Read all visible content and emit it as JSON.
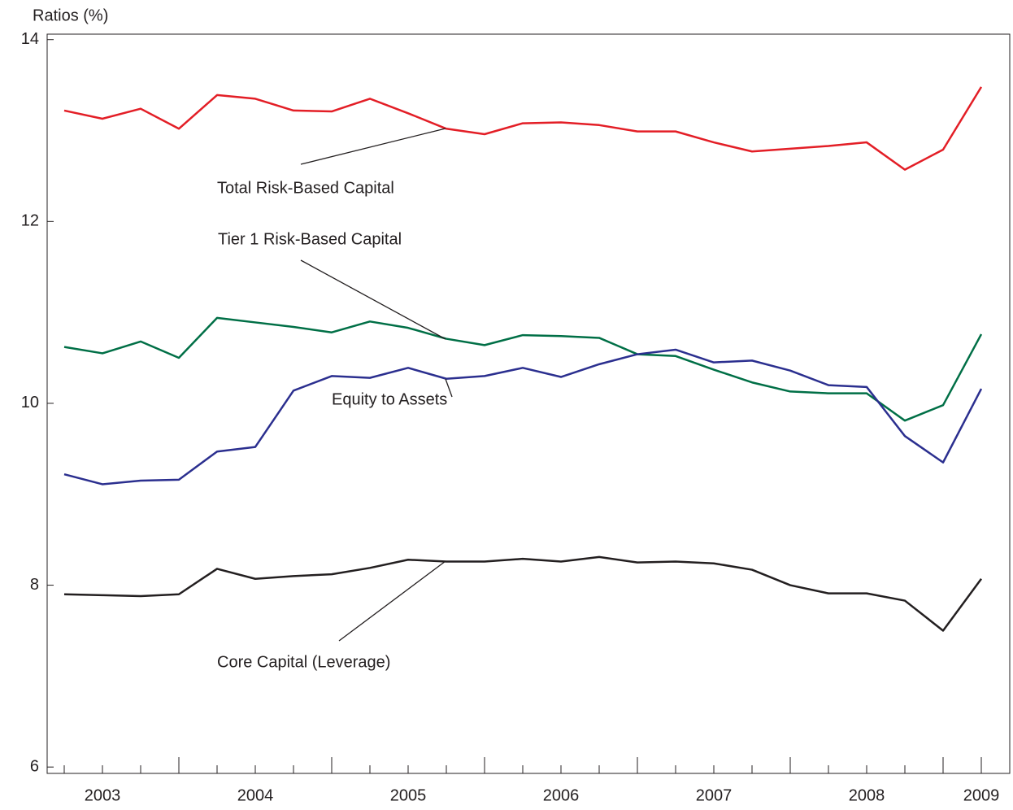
{
  "chart_data": {
    "type": "line",
    "y_label": "Ratios (%)",
    "categories": [
      null,
      "2003",
      null,
      null,
      null,
      "2004",
      null,
      null,
      null,
      "2005",
      null,
      null,
      null,
      "2006",
      null,
      null,
      null,
      "2007",
      null,
      null,
      null,
      "2008",
      null,
      null,
      "2009"
    ],
    "ylim": [
      5.93,
      14.06
    ],
    "yticks": [
      6,
      8,
      10,
      12,
      14
    ],
    "grid": false,
    "series": [
      {
        "name": "Total Risk-Based Capital",
        "color": "#e31e26",
        "values": [
          13.22,
          13.13,
          13.24,
          13.02,
          13.39,
          13.35,
          13.22,
          13.21,
          13.35,
          13.19,
          13.02,
          12.96,
          13.08,
          13.09,
          13.06,
          12.99,
          12.99,
          12.87,
          12.77,
          12.8,
          12.83,
          12.87,
          12.57,
          12.79,
          13.48
        ]
      },
      {
        "name": "Tier 1 Risk-Based Capital",
        "color": "#006f46",
        "values": [
          10.62,
          10.55,
          10.68,
          10.5,
          10.94,
          10.89,
          10.84,
          10.78,
          10.9,
          10.83,
          10.71,
          10.64,
          10.75,
          10.74,
          10.72,
          10.54,
          10.52,
          10.37,
          10.23,
          10.13,
          10.11,
          10.11,
          9.81,
          9.98,
          10.76
        ]
      },
      {
        "name": "Equity to Assets",
        "color": "#2b2f8f",
        "values": [
          9.22,
          9.11,
          9.15,
          9.16,
          9.47,
          9.52,
          10.14,
          10.3,
          10.28,
          10.39,
          10.27,
          10.3,
          10.39,
          10.29,
          10.43,
          10.54,
          10.59,
          10.45,
          10.47,
          10.36,
          10.2,
          10.18,
          9.64,
          9.35,
          10.16
        ]
      },
      {
        "name": "Core Capital (Leverage)",
        "color": "#231f20",
        "values": [
          7.9,
          7.89,
          7.88,
          7.9,
          8.18,
          8.07,
          8.1,
          8.12,
          8.19,
          8.28,
          8.26,
          8.26,
          8.29,
          8.26,
          8.31,
          8.25,
          8.26,
          8.24,
          8.17,
          8.0,
          7.91,
          7.91,
          7.83,
          7.5,
          8.07
        ]
      }
    ]
  }
}
